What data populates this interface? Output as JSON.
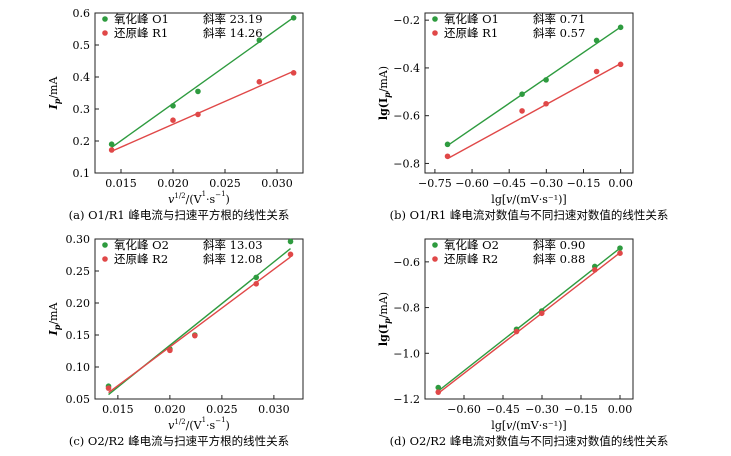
{
  "chart_data": [
    {
      "type": "scatter",
      "ylabel": "I_p/mA",
      "ylabel_main": "I",
      "ylabel_sub": "p",
      "ylabel_unit": "/mA",
      "xlabel": "v^(1/2)/(V^(1/2)·s^(-1/2))",
      "xlabel_parts": {
        "v": "v",
        "exp": "1/2",
        "unit_open": "/(V",
        "unit_mid": "·s",
        "unit_close": ")",
        "frac_top": "1",
        "frac_bottom": "2",
        "minus": "−"
      },
      "caption": "(a) O1/R1 峰电流与扫速平方根的线性关系",
      "xlim": [
        0.0125,
        0.0325
      ],
      "ylim": [
        0.1,
        0.6
      ],
      "xticks": [
        "0.015",
        "0.020",
        "0.025",
        "0.030"
      ],
      "yticks": [
        "0.1",
        "0.2",
        "0.3",
        "0.4",
        "0.5",
        "0.6"
      ],
      "legend_position": "top-left",
      "series": [
        {
          "name": "氧化峰 O1",
          "slope_label": "斜率 23.19",
          "color": "#2e9b3f",
          "x": [
            0.0141,
            0.02,
            0.0224,
            0.0283,
            0.0316
          ],
          "y": [
            0.19,
            0.31,
            0.355,
            0.515,
            0.585
          ],
          "fit": [
            [
              0.0141,
              0.18
            ],
            [
              0.0316,
              0.586
            ]
          ]
        },
        {
          "name": "还原峰 R1",
          "slope_label": "斜率 14.26",
          "color": "#e04848",
          "x": [
            0.0141,
            0.02,
            0.0224,
            0.0283,
            0.0316
          ],
          "y": [
            0.172,
            0.265,
            0.283,
            0.385,
            0.413
          ],
          "fit": [
            [
              0.0141,
              0.168
            ],
            [
              0.0316,
              0.418
            ]
          ]
        }
      ]
    },
    {
      "type": "scatter",
      "ylabel": "lg(I_p/mA)",
      "ylabel_main": "lg(I",
      "ylabel_sub": "p",
      "ylabel_unit": "/mA)",
      "xlabel": "lg[v/(mV·s⁻¹)]",
      "xlabel_parts": {
        "pre": "lg[",
        "v": "v",
        "post": "/(mV·s⁻¹)]"
      },
      "caption": "(b) O1/R1 峰电流对数值与不同扫速对数值的线性关系",
      "xlim": [
        -0.79,
        0.05
      ],
      "ylim": [
        -0.84,
        -0.17
      ],
      "xticks": [
        "−0.75",
        "−0.60",
        "−0.45",
        "−0.30",
        "−0.15",
        "0.00"
      ],
      "yticks": [
        "−0.8",
        "−0.6",
        "−0.4",
        "−0.2"
      ],
      "legend_position": "top-left",
      "series": [
        {
          "name": "氧化峰 O1",
          "slope_label": "斜率 0.71",
          "color": "#2e9b3f",
          "x": [
            -0.699,
            -0.398,
            -0.301,
            -0.097,
            0
          ],
          "y": [
            -0.72,
            -0.51,
            -0.45,
            -0.285,
            -0.23
          ],
          "fit": [
            [
              -0.699,
              -0.725
            ],
            [
              0,
              -0.229
            ]
          ]
        },
        {
          "name": "还原峰 R1",
          "slope_label": "斜率 0.57",
          "color": "#e04848",
          "x": [
            -0.699,
            -0.398,
            -0.301,
            -0.097,
            0
          ],
          "y": [
            -0.77,
            -0.58,
            -0.55,
            -0.415,
            -0.385
          ],
          "fit": [
            [
              -0.699,
              -0.78
            ],
            [
              0,
              -0.382
            ]
          ]
        }
      ]
    },
    {
      "type": "scatter",
      "ylabel": "I_p/mA",
      "ylabel_main": "I",
      "ylabel_sub": "p",
      "ylabel_unit": "/mA",
      "xlabel": "v^(1/2)/(V^(1/2)·s^(-1/2))",
      "xlabel_parts": {
        "v": "v",
        "exp": "1/2",
        "unit_open": "/(V",
        "unit_mid": "·s",
        "unit_close": ")",
        "frac_top": "1",
        "frac_bottom": "2",
        "minus": "−"
      },
      "caption": "(c) O2/R2 峰电流与扫速平方根的线性关系",
      "xlim": [
        0.0128,
        0.0328
      ],
      "ylim": [
        0.05,
        0.3
      ],
      "xticks": [
        "0.015",
        "0.020",
        "0.025",
        "0.030"
      ],
      "yticks": [
        "0.05",
        "0.10",
        "0.15",
        "0.20",
        "0.25",
        "0.30"
      ],
      "legend_position": "top-left",
      "series": [
        {
          "name": "氧化峰 O2",
          "slope_label": "斜率 13.03",
          "color": "#2e9b3f",
          "x": [
            0.0141,
            0.02,
            0.0224,
            0.0283,
            0.0316
          ],
          "y": [
            0.07,
            0.128,
            0.15,
            0.24,
            0.296
          ],
          "fit": [
            [
              0.0141,
              0.057
            ],
            [
              0.0316,
              0.285
            ]
          ]
        },
        {
          "name": "还原峰 R2",
          "slope_label": "斜率 12.08",
          "color": "#e04848",
          "x": [
            0.0141,
            0.02,
            0.0224,
            0.0283,
            0.0316
          ],
          "y": [
            0.067,
            0.126,
            0.149,
            0.23,
            0.276
          ],
          "fit": [
            [
              0.0141,
              0.06
            ],
            [
              0.0316,
              0.272
            ]
          ]
        }
      ]
    },
    {
      "type": "scatter",
      "ylabel": "lg(I_p/mA)",
      "ylabel_main": "lg(I",
      "ylabel_sub": "p",
      "ylabel_unit": "/mA)",
      "xlabel": "lg[v/(mV·s⁻¹)]",
      "xlabel_parts": {
        "pre": "lg[",
        "v": "v",
        "post": "/(mV·s⁻¹)]"
      },
      "caption": "(d) O2/R2 峰电流对数值与不同扫速对数值的线性关系",
      "xlim": [
        -0.75,
        0.05
      ],
      "ylim": [
        -1.2,
        -0.5
      ],
      "xticks": [
        "−0.60",
        "−0.45",
        "−0.30",
        "−0.15",
        "0.00"
      ],
      "yticks": [
        "−1.2",
        "−1.0",
        "−0.8",
        "−0.6"
      ],
      "legend_position": "top-left",
      "series": [
        {
          "name": "氧化峰 O2",
          "slope_label": "斜率 0.90",
          "color": "#2e9b3f",
          "x": [
            -0.699,
            -0.398,
            -0.301,
            -0.097,
            0
          ],
          "y": [
            -1.15,
            -0.895,
            -0.815,
            -0.62,
            -0.54
          ],
          "fit": [
            [
              -0.699,
              -1.165
            ],
            [
              0,
              -0.54
            ]
          ]
        },
        {
          "name": "还原峰 R2",
          "slope_label": "斜率 0.88",
          "color": "#e04848",
          "x": [
            -0.699,
            -0.398,
            -0.301,
            -0.097,
            0
          ],
          "y": [
            -1.17,
            -0.905,
            -0.825,
            -0.635,
            -0.562
          ],
          "fit": [
            [
              -0.699,
              -1.175
            ],
            [
              0,
              -0.56
            ]
          ]
        }
      ]
    }
  ]
}
